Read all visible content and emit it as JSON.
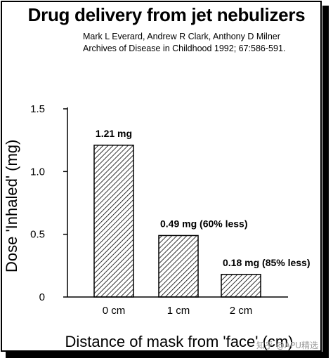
{
  "title": "Drug delivery from jet nebulizers",
  "citation": {
    "authors": "Mark L Everard, Andrew R Clark, Anthony D Milner",
    "journal": "Archives of Disease in Childhood 1992; 67:586-591."
  },
  "watermark": "知乎 @APU精选",
  "chart_data": {
    "type": "bar",
    "title": "Drug delivery from jet nebulizers",
    "xlabel": "Distance of mask from 'face' (cm)",
    "ylabel": "Dose 'Inhaled' (mg)",
    "categories": [
      "0 cm",
      "1 cm",
      "2 cm"
    ],
    "values": [
      1.21,
      0.49,
      0.18
    ],
    "data_labels": [
      "1.21 mg",
      "0.49 mg (60% less)",
      "0.18 mg (85% less)"
    ],
    "ylim": [
      0,
      1.5
    ],
    "y_ticks": [
      0,
      0.5,
      1.0,
      1.5
    ],
    "y_tick_labels": [
      "0",
      "0.5",
      "1.0",
      "1.5"
    ],
    "grid": false,
    "bar_fill": "diagonal hatch",
    "colors": {
      "bar_stroke": "#000000",
      "hatch": "#000000",
      "background": "#ffffff"
    }
  }
}
